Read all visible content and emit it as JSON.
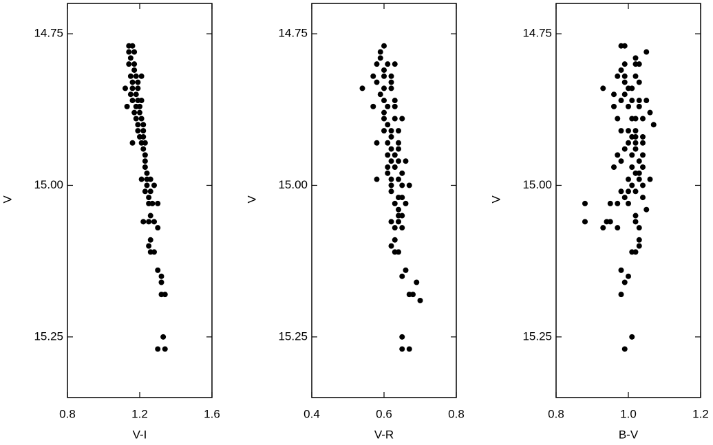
{
  "chart_data": [
    {
      "type": "scatter",
      "x_label": "V-I",
      "y_label": "V",
      "color": "#000000",
      "xlim": [
        0.8,
        1.6
      ],
      "xticks": [
        0.8,
        1.2,
        1.6
      ],
      "ylim": [
        15.35,
        14.7
      ],
      "yticks": [
        14.75,
        {
          "value": 15,
          "label": "15.00"
        },
        15.25
      ],
      "x": [
        1.14,
        1.16,
        1.14,
        1.17,
        1.15,
        1.14,
        1.17,
        1.17,
        1.15,
        1.18,
        1.21,
        1.16,
        1.19,
        1.12,
        1.16,
        1.19,
        1.15,
        1.18,
        1.16,
        1.19,
        1.21,
        1.13,
        1.18,
        1.2,
        1.17,
        1.2,
        1.18,
        1.21,
        1.19,
        1.22,
        1.19,
        1.22,
        1.2,
        1.22,
        1.16,
        1.21,
        1.23,
        1.22,
        1.23,
        1.23,
        1.23,
        1.24,
        1.21,
        1.24,
        1.26,
        1.24,
        1.28,
        1.23,
        1.26,
        1.25,
        1.25,
        1.27,
        1.3,
        1.26,
        1.22,
        1.25,
        1.28,
        1.3,
        1.26,
        1.25,
        1.26,
        1.28,
        1.3,
        1.32,
        1.32,
        1.32,
        1.34,
        1.33,
        1.3,
        1.34
      ],
      "values": [
        14.77,
        14.77,
        14.78,
        14.78,
        14.79,
        14.8,
        14.8,
        14.81,
        14.82,
        14.82,
        14.82,
        14.83,
        14.83,
        14.84,
        14.84,
        14.84,
        14.85,
        14.85,
        14.86,
        14.86,
        14.86,
        14.87,
        14.87,
        14.87,
        14.88,
        14.88,
        14.89,
        14.89,
        14.9,
        14.9,
        14.91,
        14.91,
        14.92,
        14.92,
        14.93,
        14.93,
        14.93,
        14.94,
        14.95,
        14.96,
        14.97,
        14.98,
        14.99,
        14.99,
        14.99,
        15.0,
        15.0,
        15.01,
        15.01,
        15.02,
        15.03,
        15.03,
        15.03,
        15.05,
        15.06,
        15.06,
        15.06,
        15.07,
        15.09,
        15.1,
        15.11,
        15.11,
        15.14,
        15.15,
        15.16,
        15.18,
        15.18,
        15.25,
        15.27,
        15.27
      ]
    },
    {
      "type": "scatter",
      "x_label": "V-R",
      "y_label": "V",
      "color": "#000000",
      "xlim": [
        0.4,
        0.8
      ],
      "xticks": [
        0.4,
        0.6,
        0.8
      ],
      "ylim": [
        15.35,
        14.7
      ],
      "yticks": [
        14.75,
        {
          "value": 15,
          "label": "15.00"
        },
        15.25
      ],
      "x": [
        0.6,
        0.59,
        0.59,
        0.58,
        0.61,
        0.63,
        0.6,
        0.57,
        0.6,
        0.62,
        0.58,
        0.62,
        0.54,
        0.6,
        0.62,
        0.59,
        0.6,
        0.63,
        0.57,
        0.61,
        0.63,
        0.6,
        0.6,
        0.63,
        0.65,
        0.61,
        0.6,
        0.62,
        0.64,
        0.62,
        0.58,
        0.61,
        0.64,
        0.62,
        0.64,
        0.61,
        0.63,
        0.62,
        0.64,
        0.66,
        0.61,
        0.63,
        0.61,
        0.65,
        0.58,
        0.62,
        0.64,
        0.62,
        0.65,
        0.67,
        0.62,
        0.64,
        0.65,
        0.63,
        0.66,
        0.64,
        0.64,
        0.65,
        0.62,
        0.64,
        0.63,
        0.65,
        0.63,
        0.62,
        0.63,
        0.64,
        0.66,
        0.65,
        0.69,
        0.67,
        0.68,
        0.7,
        0.65,
        0.65,
        0.67
      ],
      "values": [
        14.77,
        14.78,
        14.79,
        14.8,
        14.8,
        14.8,
        14.81,
        14.82,
        14.82,
        14.82,
        14.83,
        14.83,
        14.84,
        14.84,
        14.84,
        14.85,
        14.86,
        14.86,
        14.87,
        14.87,
        14.87,
        14.88,
        14.89,
        14.89,
        14.89,
        14.9,
        14.91,
        14.91,
        14.91,
        14.92,
        14.93,
        14.93,
        14.93,
        14.94,
        14.94,
        14.95,
        14.95,
        14.96,
        14.96,
        14.96,
        14.97,
        14.97,
        14.98,
        14.98,
        14.99,
        14.99,
        14.99,
        15.0,
        15.0,
        15.0,
        15.01,
        15.02,
        15.02,
        15.03,
        15.03,
        15.04,
        15.05,
        15.05,
        15.06,
        15.06,
        15.07,
        15.07,
        15.09,
        15.1,
        15.11,
        15.11,
        15.14,
        15.15,
        15.16,
        15.18,
        15.18,
        15.19,
        15.25,
        15.27,
        15.27
      ]
    },
    {
      "type": "scatter",
      "x_label": "B-V",
      "y_label": "V",
      "color": "#000000",
      "xlim": [
        0.8,
        1.2
      ],
      "xticks": [
        0.8,
        {
          "value": 1,
          "label": "1.0"
        },
        1.2
      ],
      "ylim": [
        15.35,
        14.7
      ],
      "yticks": [
        14.75,
        {
          "value": 15,
          "label": "15.00"
        },
        15.25
      ],
      "x": [
        0.98,
        0.99,
        1.05,
        1.02,
        0.99,
        1.02,
        1.03,
        0.98,
        0.97,
        0.99,
        1.02,
        0.99,
        1.03,
        0.93,
        1.0,
        1.01,
        0.96,
        0.99,
        0.98,
        1.01,
        1.03,
        1.05,
        0.96,
        1.0,
        1.03,
        1.06,
        0.97,
        1.01,
        1.02,
        1.04,
        1.07,
        0.98,
        1.0,
        1.02,
        1.01,
        1.02,
        1.04,
        1.0,
        1.02,
        1.04,
        0.99,
        1.02,
        0.97,
        1.01,
        1.04,
        0.98,
        1.03,
        0.96,
        1.01,
        1.04,
        1.02,
        1.03,
        1.0,
        1.03,
        1.06,
        1.01,
        1.04,
        0.98,
        1.0,
        1.02,
        0.99,
        1.04,
        0.88,
        0.95,
        0.97,
        1.0,
        1.05,
        1.02,
        0.88,
        0.94,
        0.95,
        1.02,
        0.93,
        0.97,
        1.03,
        1.03,
        1.03,
        1.01,
        1.02,
        0.98,
        1.0,
        0.99,
        0.98,
        1.01,
        0.99
      ],
      "values": [
        14.77,
        14.77,
        14.78,
        14.79,
        14.8,
        14.8,
        14.8,
        14.81,
        14.82,
        14.82,
        14.82,
        14.83,
        14.83,
        14.84,
        14.84,
        14.84,
        14.85,
        14.85,
        14.86,
        14.86,
        14.86,
        14.86,
        14.87,
        14.87,
        14.87,
        14.88,
        14.89,
        14.89,
        14.89,
        14.89,
        14.9,
        14.91,
        14.91,
        14.91,
        14.92,
        14.92,
        14.92,
        14.93,
        14.93,
        14.93,
        14.94,
        14.94,
        14.95,
        14.95,
        14.95,
        14.96,
        14.96,
        14.97,
        14.97,
        14.97,
        14.98,
        14.98,
        14.99,
        14.99,
        14.99,
        15.0,
        15.0,
        15.01,
        15.01,
        15.01,
        15.02,
        15.02,
        15.03,
        15.03,
        15.03,
        15.03,
        15.04,
        15.05,
        15.06,
        15.06,
        15.06,
        15.06,
        15.07,
        15.07,
        15.07,
        15.09,
        15.1,
        15.11,
        15.11,
        15.14,
        15.15,
        15.16,
        15.18,
        15.25,
        15.27
      ]
    }
  ]
}
